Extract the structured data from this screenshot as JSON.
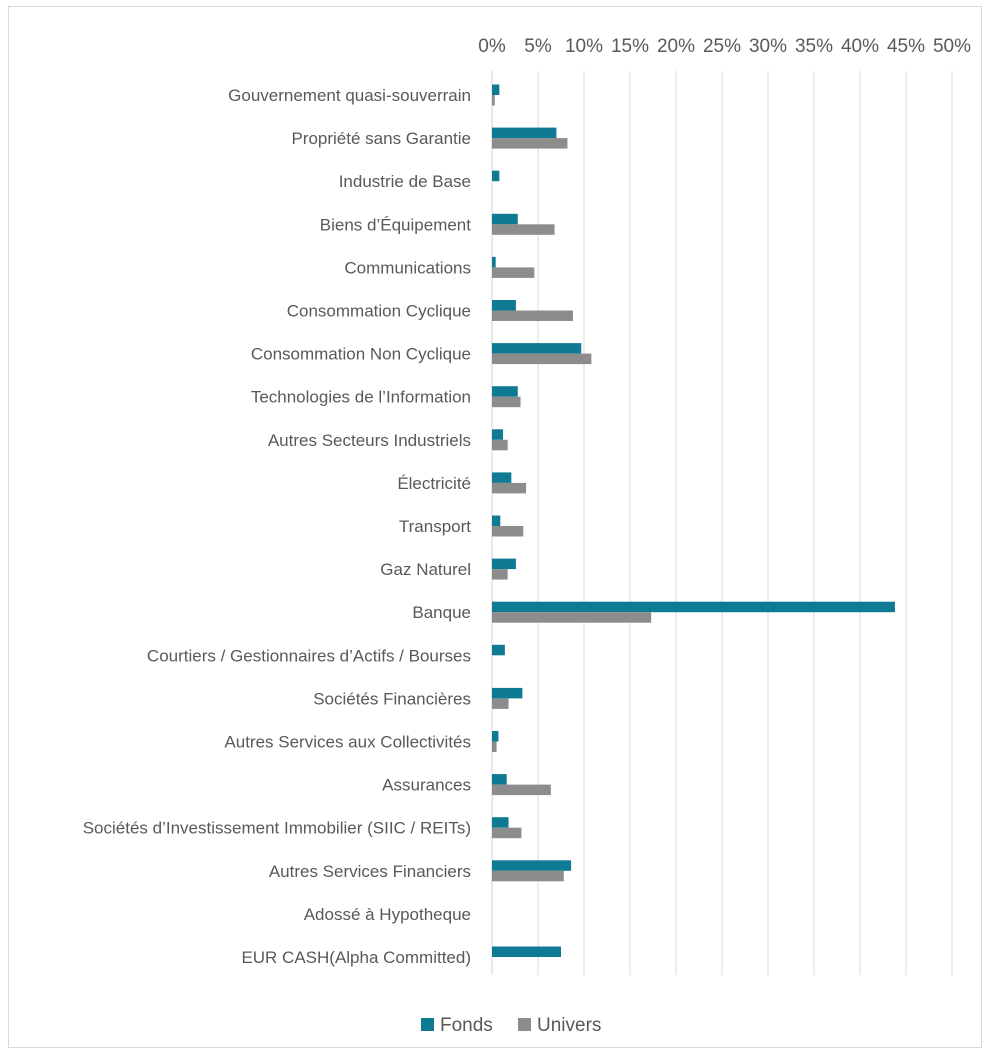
{
  "chart_data": {
    "type": "bar",
    "orientation": "horizontal",
    "x_ticks": [
      "0%",
      "5%",
      "10%",
      "15%",
      "20%",
      "25%",
      "30%",
      "35%",
      "40%",
      "45%",
      "50%"
    ],
    "xlim": [
      0,
      50
    ],
    "x_axis_position": "top",
    "grid": "vertical",
    "legend_position": "bottom",
    "categories": [
      "Gouvernement quasi-souverrain",
      "Propriété sans Garantie",
      "Industrie de Base",
      "Biens d’Équipement",
      "Communications",
      "Consommation Cyclique",
      "Consommation Non Cyclique",
      "Technologies de l’Information",
      "Autres Secteurs Industriels",
      "Électricité",
      "Transport",
      "Gaz Naturel",
      "Banque",
      "Courtiers / Gestionnaires d’Actifs / Bourses",
      "Sociétés Financières",
      "Autres Services aux Collectivités",
      "Assurances",
      "Sociétés d’Investissement Immobilier (SIIC / REITs)",
      "Autres Services Financiers",
      "Adossé à Hypotheque",
      "EUR CASH(Alpha Committed)"
    ],
    "series": [
      {
        "name": "Fonds",
        "color": "#0f7a93",
        "values": [
          0.8,
          7.0,
          0.8,
          2.8,
          0.4,
          2.6,
          9.7,
          2.8,
          1.2,
          2.1,
          0.9,
          2.6,
          43.8,
          1.4,
          3.3,
          0.7,
          1.6,
          1.8,
          8.6,
          0,
          7.5
        ]
      },
      {
        "name": "Univers",
        "color": "#8c8c8c",
        "values": [
          0.3,
          8.2,
          0,
          6.8,
          4.6,
          8.8,
          10.8,
          3.1,
          1.7,
          3.7,
          3.4,
          1.7,
          17.3,
          0,
          1.8,
          0.5,
          6.4,
          3.2,
          7.8,
          0,
          0
        ]
      }
    ]
  }
}
